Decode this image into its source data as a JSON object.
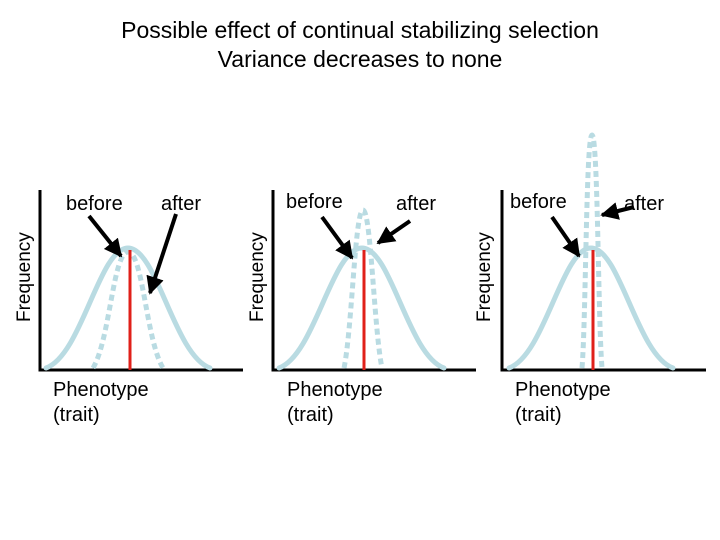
{
  "title": {
    "line1": "Possible effect of continual stabilizing selection",
    "line2": "Variance decreases to none"
  },
  "panels": [
    {
      "ylabel": "Frequency",
      "before_label": "before",
      "after_label": "after",
      "xlabel_line1": "Phenotype",
      "xlabel_line2": "(trait)",
      "after_curve": "narrower"
    },
    {
      "ylabel": "Frequency",
      "before_label": "before",
      "after_label": "after",
      "xlabel_line1": "Phenotype",
      "xlabel_line2": "(trait)",
      "after_curve": "very narrow"
    },
    {
      "ylabel": "Frequency",
      "before_label": "before",
      "after_label": "after",
      "xlabel_line1": "Phenotype",
      "xlabel_line2": "(trait)",
      "after_curve": "spike (no variance)"
    }
  ],
  "colors": {
    "before_curve": "#b9dbe2",
    "after_curve": "#b9dbe2",
    "mean_line": "#e0201a",
    "axes": "#000000",
    "arrows": "#000000"
  }
}
